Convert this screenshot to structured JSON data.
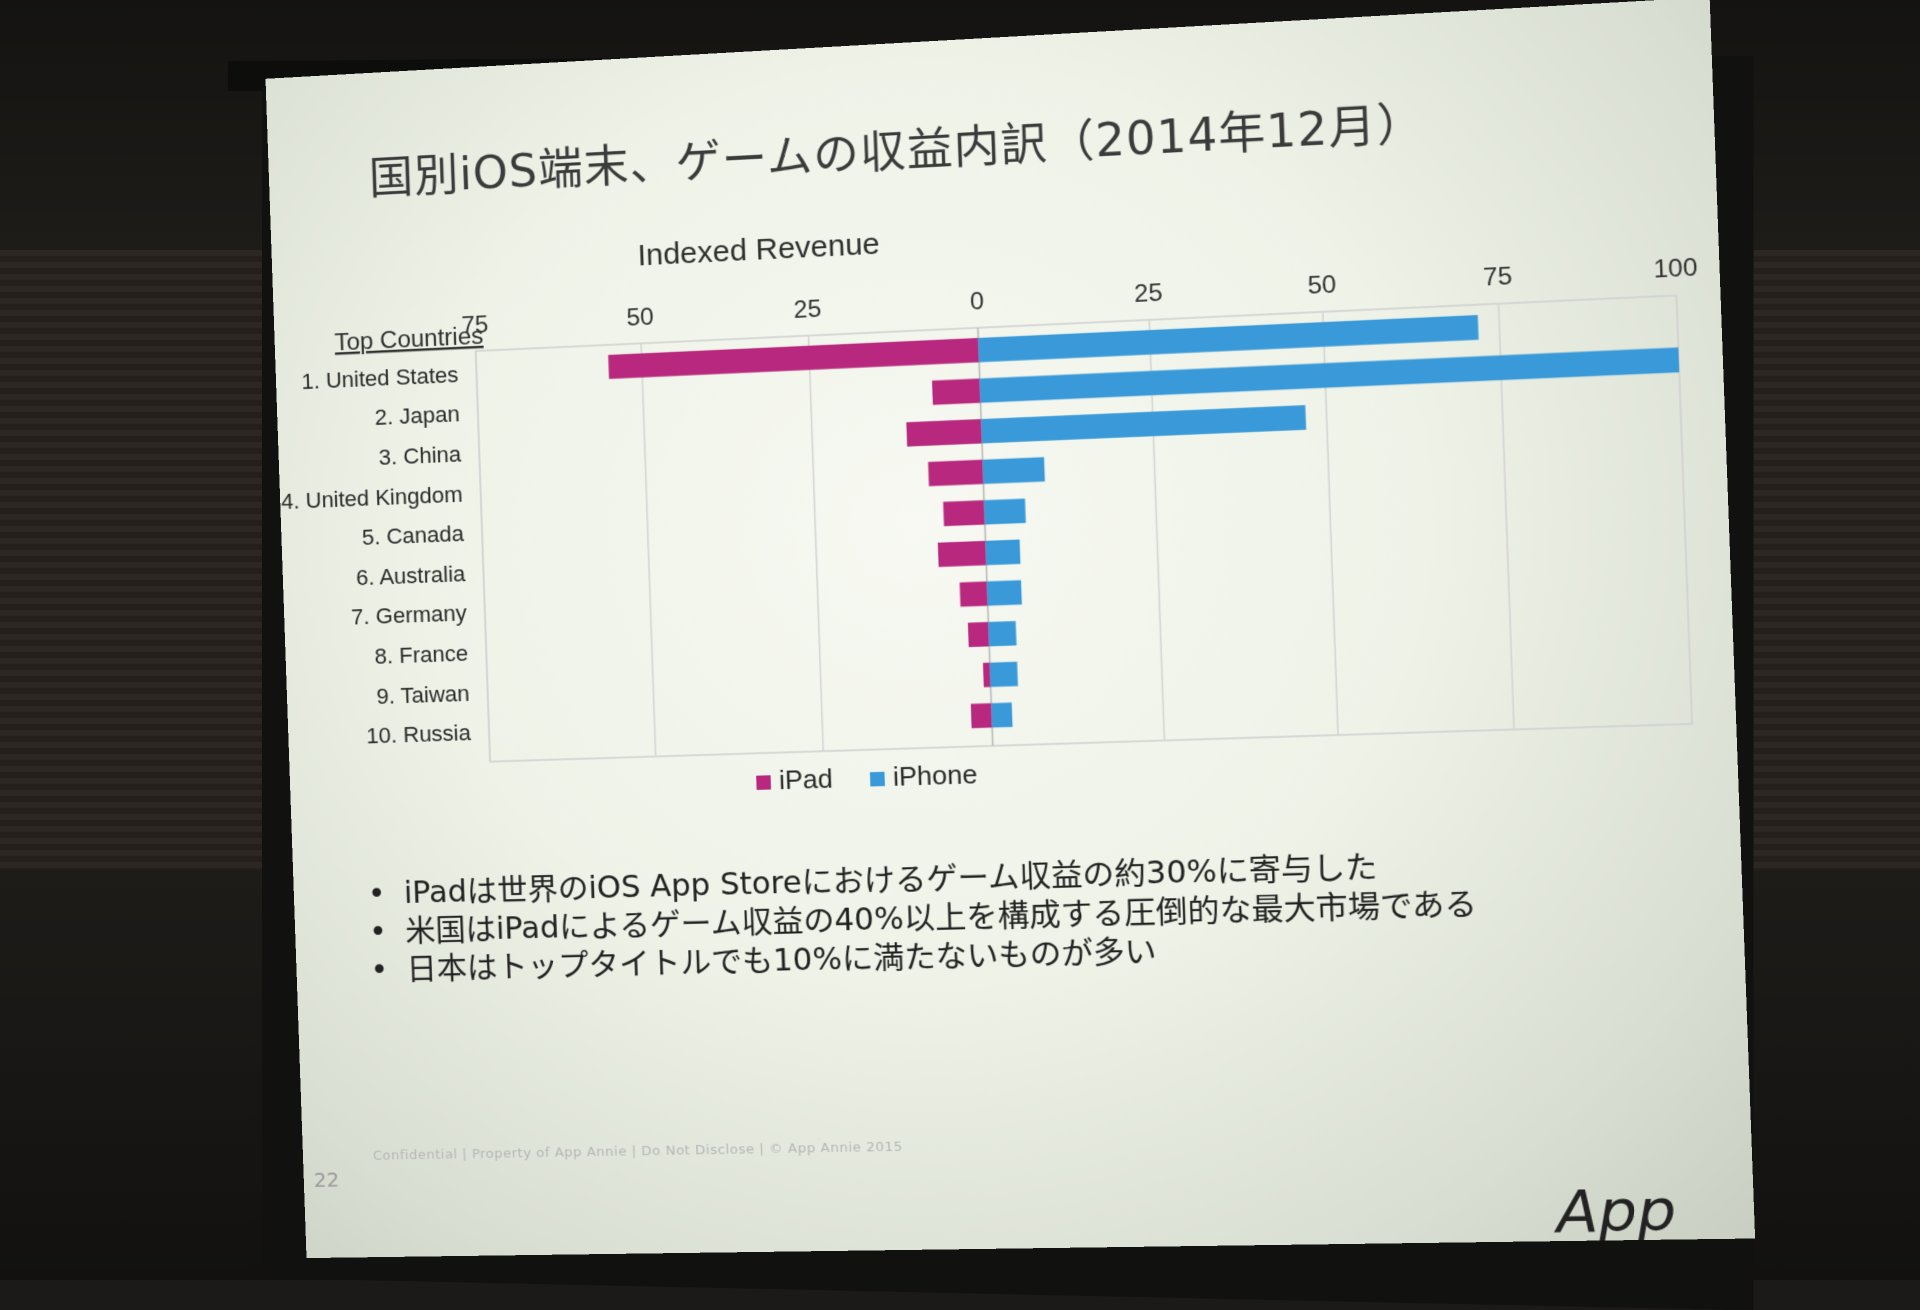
{
  "slide": {
    "title": "国別iOS端末、ゲームの収益内訳（2014年12月）",
    "bullets": [
      "iPadは世界のiOS App Storeにおけるゲーム収益の約30%に寄与した",
      "米国はiPadによるゲーム収益の40%以上を構成する圧倒的な最大市場である",
      "日本はトップタイトルでも10%に満たないものが多い"
    ],
    "page_number": "22",
    "footer": "Confidential | Property of App Annie | Do Not Disclose | © App Annie 2015",
    "logo": "App Annie"
  },
  "chart_data": {
    "type": "bar",
    "orientation": "horizontal-diverging",
    "title": "Indexed Revenue",
    "category_header": "Top Countries",
    "categories": [
      "1. United States",
      "2. Japan",
      "3. China",
      "4. United Kingdom",
      "5. Canada",
      "6. Australia",
      "7. Germany",
      "8. France",
      "9. Taiwan",
      "10. Russia"
    ],
    "x_tick_labels": [
      "75",
      "50",
      "25",
      "0",
      "25",
      "50",
      "75",
      "100"
    ],
    "x_ticks": [
      -75,
      -50,
      -25,
      0,
      25,
      50,
      75,
      100
    ],
    "xlim": [
      -75,
      100
    ],
    "series": [
      {
        "name": "iPad",
        "color": "#b8287e",
        "values": [
          -55,
          -7,
          -11,
          -8,
          -6,
          -7,
          -4,
          -3,
          -1,
          -3
        ]
      },
      {
        "name": "iPhone",
        "color": "#3a9ad9",
        "values": [
          72,
          100,
          47,
          9,
          6,
          5,
          5,
          4,
          4,
          3
        ]
      }
    ],
    "grid": true,
    "legend_position": "bottom"
  }
}
